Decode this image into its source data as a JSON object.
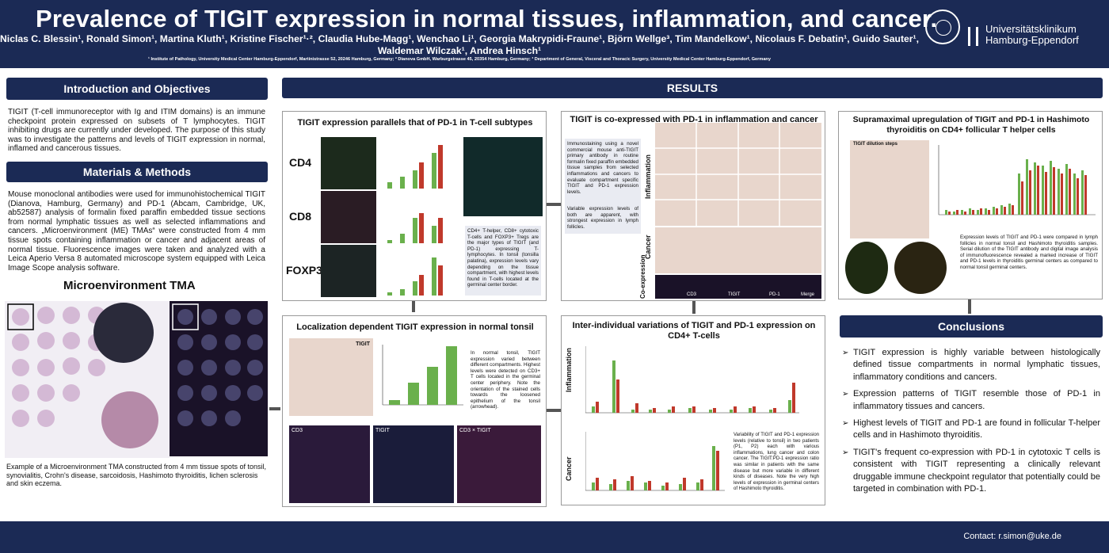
{
  "header": {
    "title": "Prevalence of TIGIT expression in normal tissues, inflammation, and cancer.",
    "authors": "Niclas C. Blessin¹, Ronald Simon¹, Martina Kluth¹, Kristine Fischer¹·², Claudia Hube-Magg¹, Wenchao Li¹, Georgia Makrypidi-Fraune¹, Björn Wellge³, Tim Mandelkow¹, Nicolaus F. Debatin¹, Guido Sauter¹, Waldemar Wilczak¹, Andrea Hinsch¹",
    "affiliations": "¹ Institute of Pathology, University Medical Center Hamburg-Eppendorf, Martinistrasse 52, 20246 Hamburg, Germany; ² Dianova GmbH, Warburgstrasse 45, 20354 Hamburg, Germany; ³ Department of General, Visceral and Thoracic Surgery, University Medical Center Hamburg-Eppendorf, Germany",
    "logo_text_1": "Universitätsklinikum",
    "logo_text_2": "Hamburg-Eppendorf"
  },
  "intro": {
    "heading": "Introduction and Objectives",
    "text": "TIGIT (T-cell immunoreceptor with Ig and ITIM domains) is an immune checkpoint protein expressed on subsets of T lymphocytes. TIGIT inhibiting drugs are currently under developed. The purpose of this study was to investigate the patterns and levels of TIGIT expression in normal, inflamed and cancerous tissues."
  },
  "methods": {
    "heading": "Materials & Methods",
    "text": "Mouse monoclonal antibodies were used for immunohistochemical TIGIT (Dianova, Hamburg, Germany) and PD-1 (Abcam, Cambridge, UK, ab52587) analysis of formalin fixed paraffin embedded tissue sections from normal lymphatic tissues as well as selected inflammations and cancers. „Microenvironment (ME) TMAs“ were constructed from 4 mm tissue spots containing inflammation or cancer and adjacent areas of normal tissue. Fluorescence images were taken and analyzed with a Leica Aperio Versa 8 automated microscope system equipped with Leica Image Scope analysis software.",
    "tma_title": "Microenvironment TMA",
    "tma_caption": "Example of a Microenvironment TMA constructed from 4 mm tissue spots of tonsil, synovialitis, Crohn's disease, sarcoidosis, Hashimoto thyroiditis, lichen sclerosis and skin eczema."
  },
  "results": {
    "heading": "RESULTS",
    "panel1": {
      "title": "TIGIT expression parallels that of PD-1 in T-cell subtypes",
      "rows": [
        "CD4",
        "CD8",
        "FOXP3"
      ],
      "note": "CD4+ T-helper, CD8+ cytotoxic T-cells and FOXP3+ Tregs are the major types of TIGIT (and PD-1) expressing T-lymphocytes. In tonsil (tonsilla palatina), expression levels vary depending on the tissue compartment, with highest levels found in T-cells located at the germinal center border."
    },
    "panel2": {
      "title": "Localization dependent TIGIT expression in normal tonsil",
      "img_label": "TIGIT",
      "note": "In normal tonsil, TIGIT expression varied between different compartments. Highest levels were detected on CD3+ T cells located in the germinal center periphery. Note the orientation of the stained cells towards the loosened epithelium of the tonsil (arrowhead).",
      "fluor_labels": [
        "CD3",
        "TIGIT",
        "CD3 × TIGIT"
      ]
    },
    "panel3": {
      "title": "TIGIT is co-expressed with PD-1 in inflammation and cancer",
      "note": "Immunostaining using a novel commercial mouse anti-TIGIT primary antibody in routine formalin fixed paraffin embedded tissue samples from selected inflammations and cancers to evaluate compartment specific TIGIT and PD-1 expression levels.",
      "note2": "Variable expression levels of both are apparent, with strongest expression in lymph follicles.",
      "side_labels": [
        "Inflammation",
        "Cancer",
        "Co-expression"
      ],
      "coexp_labels": [
        "CD3",
        "TIGIT",
        "PD-1",
        "Merge"
      ]
    },
    "panel4": {
      "title": "Inter-individual variations of TIGIT and PD-1 expression on CD4+ T-cells",
      "side_labels": [
        "Inflammation",
        "Cancer"
      ],
      "note": "Variability of TIGIT and PD-1 expression levels (relative to tonsil) in two patients (P1, P2) each with various inflammations, lung cancer and colon cancer. The TIGIT:PD-1 expression ratio was similar in patients with the same disease but more variable in different kinds of diseases. Note the very high levels of expression in germinal centers of Hashimoto thyroiditis."
    },
    "panel5": {
      "title": "Supramaximal upregulation of TIGIT and PD-1 in Hashimoto thyroiditis on CD4+ follicular T helper cells",
      "img_label": "TIGIT dilution steps",
      "note": "Expression levels of TIGIT and PD-1 were compared in lymph follicles in normal tonsil and Hashimoto thyroiditis samples. Serial dilution of the TIGIT antibody and digital image analysis of immunofluorescence revealed a marked increase of TIGIT and PD-1 levels in thyroiditis germinal centers as compared to normal tonsil germinal centers."
    }
  },
  "conclusions": {
    "heading": "Conclusions",
    "items": [
      "TIGIT expression is highly variable between histologically defined tissue compartments in normal lymphatic tissues, inflammatory conditions and cancers.",
      "Expression patterns of TIGIT resemble those of PD-1 in inflammatory tissues and cancers.",
      "Highest levels of TIGIT and PD-1 are found in follicular T-helper cells and in Hashimoto thyroiditis.",
      "TIGIT's frequent co-expression with PD-1 in cytotoxic T cells is consistent with TIGIT representing a clinically relevant druggable immune checkpoint regulator that potentially could be targeted in combination with PD-1."
    ]
  },
  "footer": {
    "contact": "Contact: r.simon@uke.de"
  },
  "colors": {
    "navy": "#1b2a55",
    "bar_green": "#6ab04c",
    "bar_red": "#c0392b"
  }
}
